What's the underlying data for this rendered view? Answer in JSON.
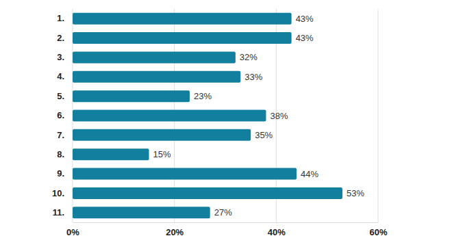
{
  "chart_data": {
    "type": "bar",
    "orientation": "horizontal",
    "categories": [
      "1.",
      "2.",
      "3.",
      "4.",
      "5.",
      "6.",
      "7.",
      "8.",
      "9.",
      "10.",
      "11."
    ],
    "values": [
      43,
      43,
      32,
      33,
      23,
      38,
      35,
      15,
      44,
      53,
      27
    ],
    "value_labels": [
      "43%",
      "43%",
      "32%",
      "33%",
      "23%",
      "38%",
      "35%",
      "15%",
      "44%",
      "53%",
      "27%"
    ],
    "data_labels": true,
    "color": "#137f9f",
    "xlim": [
      0,
      60
    ],
    "xticks": [
      {
        "value": 0,
        "label": "0%"
      },
      {
        "value": 20,
        "label": "20%"
      },
      {
        "value": 40,
        "label": "40%"
      },
      {
        "value": 60,
        "label": "60%"
      }
    ],
    "grid": true
  }
}
